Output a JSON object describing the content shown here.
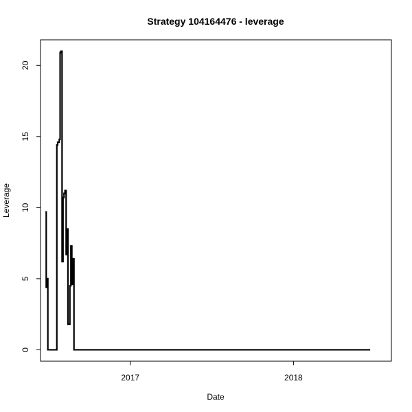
{
  "chart_data": {
    "type": "line",
    "title": "Strategy 104164476 - leverage",
    "xlabel": "Date",
    "ylabel": "Leverage",
    "xlim": [
      2016.45,
      2018.6
    ],
    "ylim": [
      -0.8,
      21.8
    ],
    "x_ticks": [
      {
        "value": 2017,
        "label": "2017"
      },
      {
        "value": 2018,
        "label": "2018"
      }
    ],
    "y_ticks": [
      {
        "value": 0,
        "label": "0"
      },
      {
        "value": 5,
        "label": "5"
      },
      {
        "value": 10,
        "label": "10"
      },
      {
        "value": 15,
        "label": "15"
      },
      {
        "value": 20,
        "label": "20"
      }
    ],
    "grid": false,
    "line_color": "#000000",
    "series": [
      {
        "name": "Leverage",
        "step": true,
        "x": [
          2016.48,
          2016.485,
          2016.49,
          2016.495,
          2016.55,
          2016.555,
          2016.565,
          2016.57,
          2016.575,
          2016.582,
          2016.588,
          2016.594,
          2016.6,
          2016.607,
          2016.612,
          2016.618,
          2016.624,
          2016.63,
          2016.636,
          2016.642,
          2016.648,
          2016.655,
          2016.66,
          2016.665,
          2018.47
        ],
        "y": [
          9.7,
          4.4,
          5.0,
          0.0,
          14.4,
          14.6,
          14.8,
          20.9,
          21.0,
          6.2,
          10.7,
          11.0,
          11.2,
          6.7,
          8.5,
          1.8,
          1.8,
          4.5,
          7.3,
          4.6,
          6.4,
          0.0,
          0.0,
          0.0,
          0.0
        ]
      }
    ]
  }
}
